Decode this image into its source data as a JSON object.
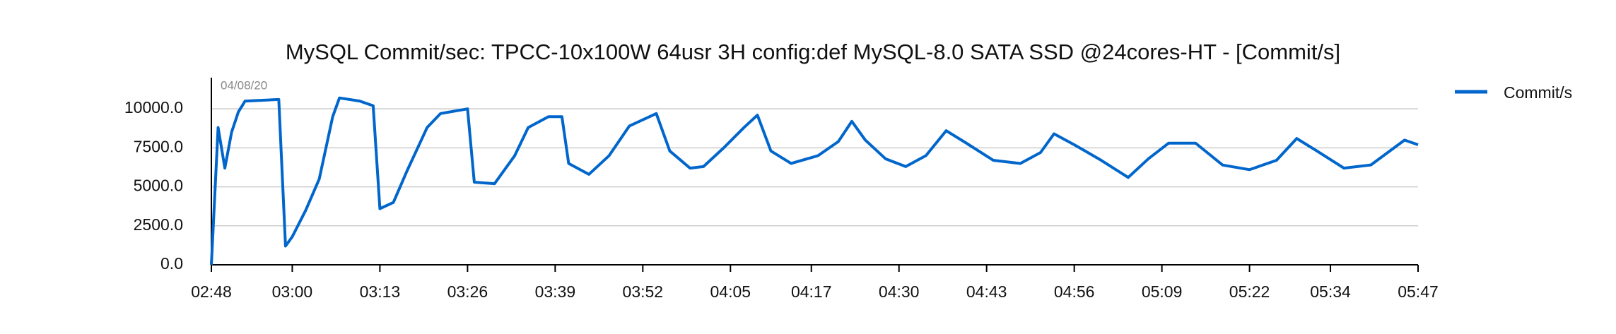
{
  "chart_data": {
    "type": "line",
    "title": "MySQL Commit/sec: TPCC-10x100W 64usr 3H config:def MySQL-8.0 SATA SSD @24cores-HT - [Commit/s]",
    "annotation": "04/08/20",
    "x": [
      "02:48",
      "02:49",
      "02:50",
      "02:51",
      "02:52",
      "02:53",
      "02:58",
      "02:59",
      "03:00",
      "03:02",
      "03:04",
      "03:06",
      "03:07",
      "03:10",
      "03:12",
      "03:13",
      "03:15",
      "03:17",
      "03:20",
      "03:22",
      "03:26",
      "03:27",
      "03:30",
      "03:33",
      "03:35",
      "03:38",
      "03:40",
      "03:41",
      "03:44",
      "03:47",
      "03:50",
      "03:54",
      "03:56",
      "03:59",
      "04:01",
      "04:04",
      "04:07",
      "04:09",
      "04:11",
      "04:14",
      "04:18",
      "04:21",
      "04:23",
      "04:25",
      "04:28",
      "04:31",
      "04:34",
      "04:37",
      "04:40",
      "04:44",
      "04:48",
      "04:51",
      "04:53",
      "04:56",
      "05:00",
      "05:04",
      "05:07",
      "05:10",
      "05:14",
      "05:18",
      "05:22",
      "05:26",
      "05:29",
      "05:32",
      "05:36",
      "05:40",
      "05:45",
      "05:47"
    ],
    "series": [
      {
        "name": "Commit/s",
        "color": "#0066cc",
        "values": [
          0,
          8800,
          6200,
          8500,
          9800,
          10500,
          10600,
          1200,
          1800,
          3500,
          5500,
          9500,
          10700,
          10500,
          10200,
          3600,
          4000,
          6000,
          8800,
          9700,
          10000,
          5300,
          5200,
          7000,
          8800,
          9500,
          9500,
          6500,
          5800,
          7000,
          8900,
          9700,
          7300,
          6200,
          6300,
          7500,
          8800,
          9600,
          7300,
          6500,
          7000,
          7900,
          9200,
          8000,
          6800,
          6300,
          7000,
          8600,
          7800,
          6700,
          6500,
          7200,
          8400,
          7700,
          6700,
          5600,
          6800,
          7800,
          7800,
          6400,
          6100,
          6700,
          8100,
          7300,
          6200,
          6400,
          8000,
          7700
        ]
      }
    ],
    "xlim": [
      "02:48",
      "05:47"
    ],
    "xticks": [
      "02:48",
      "03:00",
      "03:13",
      "03:26",
      "03:39",
      "03:52",
      "04:05",
      "04:17",
      "04:30",
      "04:43",
      "04:56",
      "05:09",
      "05:22",
      "05:34",
      "05:47"
    ],
    "ylim": [
      0,
      12000
    ],
    "yticks": [
      {
        "value": 0,
        "label": "0.0"
      },
      {
        "value": 2500,
        "label": "2500.0"
      },
      {
        "value": 5000,
        "label": "5000.0"
      },
      {
        "value": 7500,
        "label": "7500.0"
      },
      {
        "value": 10000,
        "label": "10000.0"
      }
    ],
    "grid": true,
    "legend": "right"
  }
}
